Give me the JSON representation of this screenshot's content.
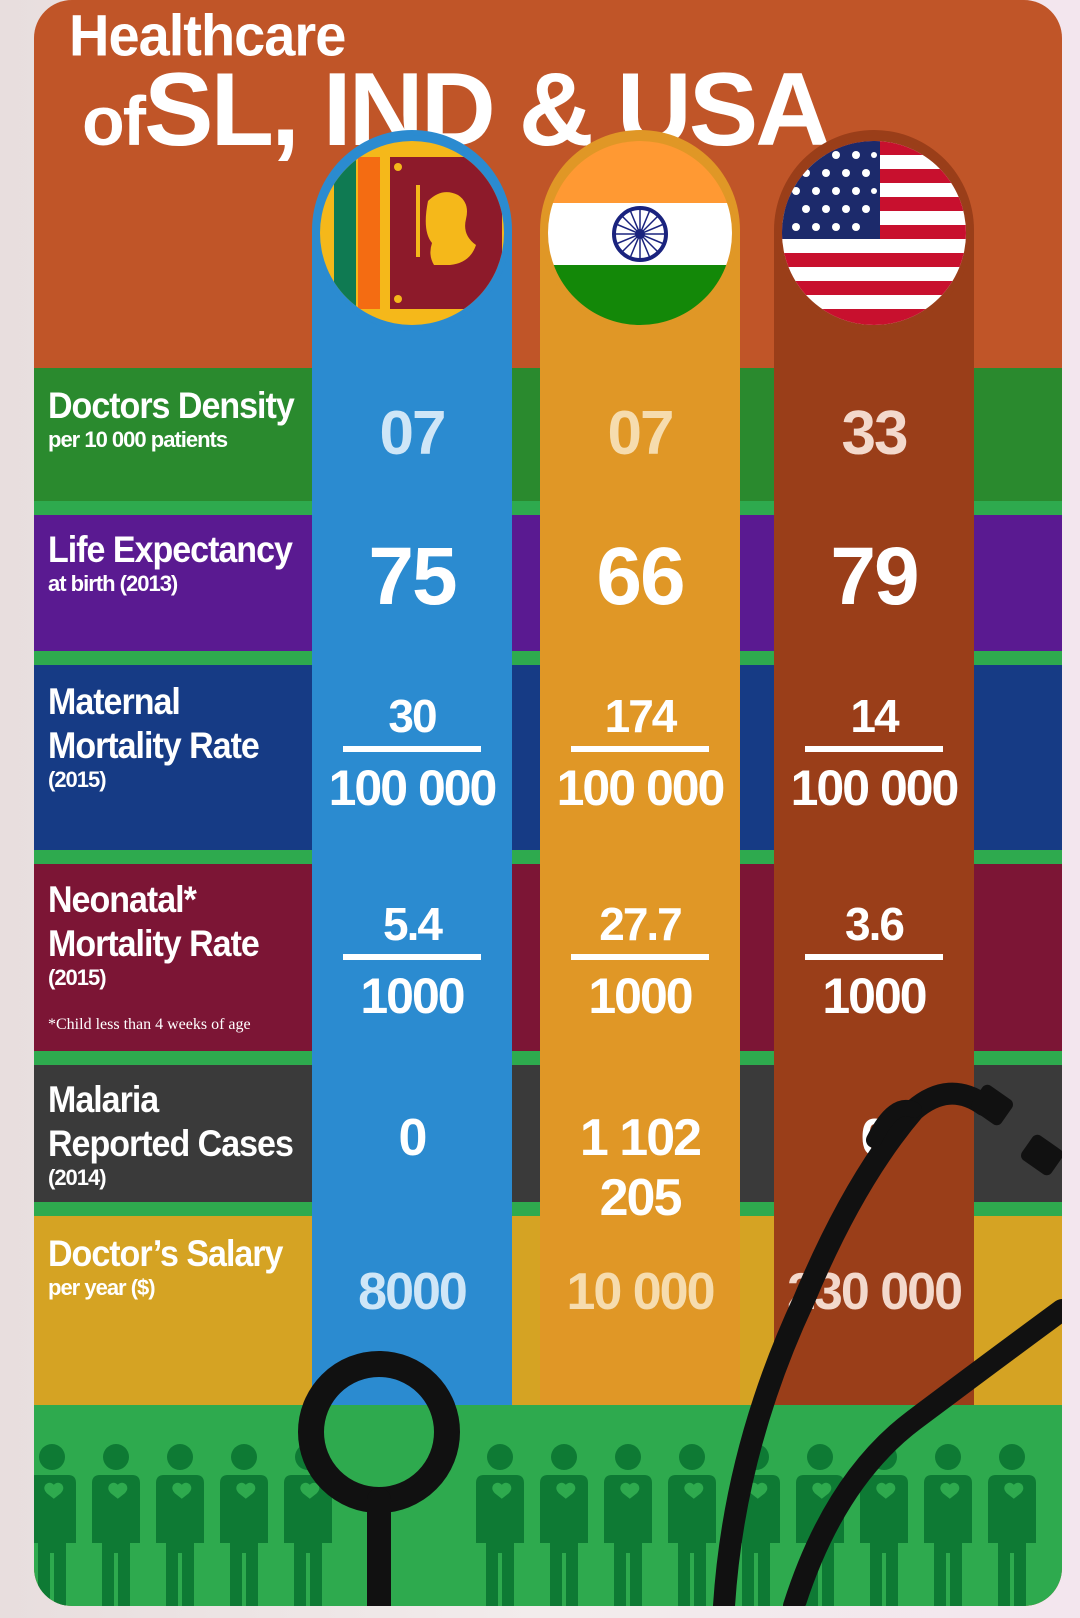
{
  "title": {
    "line1": "Healthcare",
    "of": "of",
    "line2": "SL, IND & USA"
  },
  "colors": {
    "background": "#c05528",
    "sri_lanka_column": "#2b8bd0",
    "india_column": "#e09726",
    "usa_column": "#9a3e19",
    "stripe": "#2eaa4e"
  },
  "countries": [
    "Sri Lanka flag",
    "India flag",
    "USA flag"
  ],
  "rows": {
    "doctors_density": {
      "label": "Doctors Density",
      "sub": "per 10 000 patients",
      "values": [
        "07",
        "07",
        "33"
      ]
    },
    "life_expectancy": {
      "label": "Life Expectancy",
      "sub": "at birth (2013)",
      "values": [
        "75",
        "66",
        "79"
      ]
    },
    "maternal_mortality": {
      "label1": "Maternal",
      "label2": "Mortality Rate",
      "sub": "(2015)",
      "numerators": [
        "30",
        "174",
        "14"
      ],
      "denominators": [
        "100 000",
        "100 000",
        "100 000"
      ]
    },
    "neonatal_mortality": {
      "label1": "Neonatal*",
      "label2": "Mortality Rate",
      "sub": "(2015)",
      "note": "*Child less than 4 weeks of age",
      "numerators": [
        "5.4",
        "27.7",
        "3.6"
      ],
      "denominators": [
        "1000",
        "1000",
        "1000"
      ]
    },
    "malaria": {
      "label1": "Malaria",
      "label2": "Reported Cases",
      "sub": "(2014)",
      "values": [
        "0",
        "1 102 205",
        "0"
      ]
    },
    "salary": {
      "label": "Doctor’s Salary",
      "sub": "per year ($)",
      "values": [
        "8000",
        "10 000",
        "230 000"
      ]
    }
  },
  "icons": [
    "stethoscope-icon",
    "people-icon"
  ]
}
